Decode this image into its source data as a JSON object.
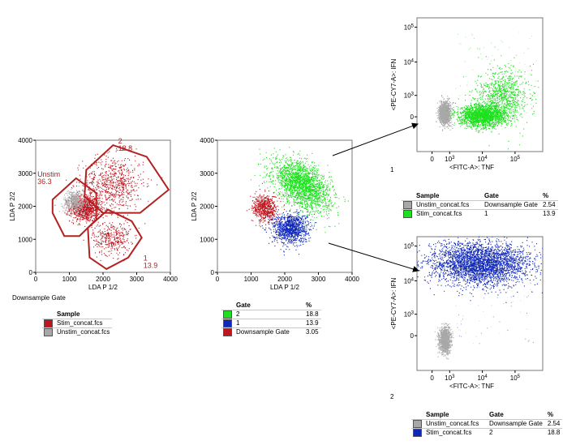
{
  "colors": {
    "stim": "#c0141e",
    "unstim": "#a8a8a8",
    "green": "#1fe01f",
    "blue": "#1028b8",
    "gate": "#b22222"
  },
  "chart_data": [
    {
      "type": "scatter",
      "id": "p1",
      "xlabel": "LDA P 1/2",
      "ylabel": "LDA P 2/2",
      "xlim": [
        0,
        4000
      ],
      "ylim": [
        0,
        4000
      ],
      "xticks": [
        "0",
        "1000",
        "2000",
        "3000",
        "4000"
      ],
      "yticks": [
        "0",
        "1000",
        "2000",
        "3000",
        "4000"
      ],
      "caption": "Downsample Gate",
      "series": [
        {
          "name": "Stim_concat.fcs",
          "color": "#c0141e",
          "clusters": [
            {
              "cx": 1450,
              "cy": 1950,
              "sx": 220,
              "sy": 200,
              "n": 900
            },
            {
              "cx": 2300,
              "cy": 2700,
              "sx": 450,
              "sy": 420,
              "n": 700
            },
            {
              "cx": 2250,
              "cy": 1050,
              "sx": 280,
              "sy": 260,
              "n": 350
            }
          ]
        },
        {
          "name": "Unstim_concat.fcs",
          "color": "#a8a8a8",
          "clusters": [
            {
              "cx": 1150,
              "cy": 2150,
              "sx": 170,
              "sy": 170,
              "n": 450
            }
          ]
        }
      ],
      "gates": [
        {
          "name": "Unstim",
          "value": "36.3",
          "polygon": [
            [
              500,
              2200
            ],
            [
              1200,
              2850
            ],
            [
              1800,
              2400
            ],
            [
              1800,
              1600
            ],
            [
              1300,
              1100
            ],
            [
              850,
              1100
            ],
            [
              500,
              1800
            ]
          ],
          "label_at": [
            50,
            2900
          ]
        },
        {
          "name": "2",
          "value": "18.8",
          "polygon": [
            [
              1500,
              3100
            ],
            [
              2300,
              3850
            ],
            [
              3300,
              3500
            ],
            [
              3950,
              2500
            ],
            [
              3100,
              1800
            ],
            [
              2000,
              1800
            ],
            [
              1450,
              2300
            ]
          ],
          "label_at": [
            2450,
            3900
          ]
        },
        {
          "name": "1",
          "value": "13.9",
          "polygon": [
            [
              1550,
              1350
            ],
            [
              2150,
              1900
            ],
            [
              2850,
              1550
            ],
            [
              3150,
              1050
            ],
            [
              2750,
              450
            ],
            [
              2100,
              100
            ],
            [
              1600,
              450
            ]
          ],
          "label_at": [
            3200,
            350
          ]
        }
      ]
    },
    {
      "type": "scatter",
      "id": "p2",
      "xlabel": "LDA P 1/2",
      "ylabel": "LDA P 2/2",
      "xlim": [
        0,
        4000
      ],
      "ylim": [
        0,
        4000
      ],
      "xticks": [
        "0",
        "1000",
        "2000",
        "3000",
        "4000"
      ],
      "yticks": [
        "0",
        "1000",
        "2000",
        "3000",
        "4000"
      ],
      "series": [
        {
          "name": "2",
          "color": "#1fe01f",
          "clusters": [
            {
              "cx": 2500,
              "cy": 2650,
              "sx": 420,
              "sy": 330,
              "n": 2200,
              "tilt": -0.55
            }
          ]
        },
        {
          "name": "1",
          "color": "#1028b8",
          "clusters": [
            {
              "cx": 2150,
              "cy": 1350,
              "sx": 260,
              "sy": 230,
              "n": 1100
            }
          ]
        },
        {
          "name": "Downsample Gate",
          "color": "#c0141e",
          "clusters": [
            {
              "cx": 1400,
              "cy": 1950,
              "sx": 180,
              "sy": 200,
              "n": 600
            }
          ]
        }
      ]
    },
    {
      "type": "scatter",
      "id": "p3",
      "xlabel": "<FITC-A>: TNF",
      "ylabel": "<PE-CY7-A>: IFN",
      "xticks": [
        "0",
        "10^3",
        "10^4",
        "10^5"
      ],
      "yticks": [
        "0",
        "10^3",
        "10^4",
        "10^5"
      ],
      "scale": "biexponential",
      "caption": "1",
      "series": [
        {
          "name": "Unstim_concat.fcs",
          "color": "#a8a8a8",
          "clusters": [
            {
              "cx": 0.22,
              "cy": 0.29,
              "sx": 0.022,
              "sy": 0.04,
              "n": 1400
            }
          ]
        },
        {
          "name": "Stim_concat.fcs",
          "color": "#1fe01f",
          "clusters": [
            {
              "cx": 0.52,
              "cy": 0.27,
              "sx": 0.09,
              "sy": 0.04,
              "n": 2000
            },
            {
              "cx": 0.68,
              "cy": 0.42,
              "sx": 0.1,
              "sy": 0.1,
              "n": 900
            }
          ]
        }
      ]
    },
    {
      "type": "scatter",
      "id": "p4",
      "xlabel": "<FITC-A>: TNF",
      "ylabel": "<PE-CY7-A>: IFN",
      "xticks": [
        "0",
        "10^3",
        "10^4",
        "10^5"
      ],
      "yticks": [
        "0",
        "10^3",
        "10^4",
        "10^5"
      ],
      "scale": "biexponential",
      "caption": "2",
      "series": [
        {
          "name": "Unstim_concat.fcs",
          "color": "#a8a8a8",
          "clusters": [
            {
              "cx": 0.22,
              "cy": 0.23,
              "sx": 0.022,
              "sy": 0.045,
              "n": 1300
            }
          ]
        },
        {
          "name": "Stim_concat.fcs",
          "color": "#1028b8",
          "clusters": [
            {
              "cx": 0.5,
              "cy": 0.8,
              "sx": 0.2,
              "sy": 0.08,
              "n": 3200
            }
          ]
        }
      ]
    }
  ],
  "legends": {
    "p1": {
      "headers": [
        "Sample"
      ],
      "rows": [
        {
          "color": "#c0141e",
          "sample": "Stim_concat.fcs"
        },
        {
          "color": "#a8a8a8",
          "sample": "Unstim_concat.fcs"
        }
      ]
    },
    "p2": {
      "headers": [
        "Gate",
        "%"
      ],
      "rows": [
        {
          "color": "#1fe01f",
          "gate": "2",
          "pct": "18.8"
        },
        {
          "color": "#1028b8",
          "gate": "1",
          "pct": "13.9"
        },
        {
          "color": "#c0141e",
          "gate": "Downsample Gate",
          "pct": "3.05"
        }
      ]
    },
    "p3": {
      "headers": [
        "Sample",
        "Gate",
        "%"
      ],
      "rows": [
        {
          "color": "#a8a8a8",
          "sample": "Unstim_concat.fcs",
          "gate": "Downsample Gate",
          "pct": "2.54"
        },
        {
          "color": "#1fe01f",
          "sample": "Stim_concat.fcs",
          "gate": "1",
          "pct": "13.9"
        }
      ]
    },
    "p4": {
      "headers": [
        "Sample",
        "Gate",
        "%"
      ],
      "rows": [
        {
          "color": "#a8a8a8",
          "sample": "Unstim_concat.fcs",
          "gate": "Downsample Gate",
          "pct": "2.54"
        },
        {
          "color": "#1028b8",
          "sample": "Stim_concat.fcs",
          "gate": "2",
          "pct": "18.8"
        }
      ]
    }
  }
}
